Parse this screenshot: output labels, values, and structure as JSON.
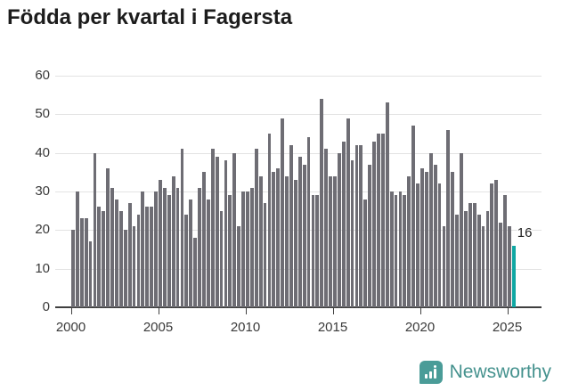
{
  "title": "Födda per kvartal i Fagersta",
  "chart_data": {
    "type": "bar",
    "title": "Födda per kvartal i Fagersta",
    "series_name": "Födda per kvartal",
    "x_start": "2000 Q1",
    "x_end": "2025 Q2",
    "frequency": "quarterly",
    "values": [
      20,
      30,
      23,
      23,
      17,
      40,
      26,
      25,
      36,
      31,
      28,
      25,
      20,
      27,
      21,
      24,
      30,
      26,
      26,
      30,
      33,
      31,
      29,
      34,
      31,
      41,
      24,
      28,
      18,
      31,
      35,
      28,
      41,
      39,
      25,
      38,
      29,
      40,
      21,
      30,
      30,
      31,
      41,
      34,
      27,
      45,
      35,
      36,
      49,
      34,
      42,
      33,
      39,
      37,
      44,
      29,
      29,
      54,
      41,
      34,
      34,
      40,
      43,
      49,
      38,
      42,
      42,
      28,
      37,
      43,
      45,
      45,
      53,
      30,
      29,
      30,
      29,
      34,
      47,
      32,
      36,
      35,
      40,
      37,
      32,
      21,
      46,
      35,
      24,
      40,
      25,
      27,
      27,
      24,
      21,
      25,
      32,
      33,
      22,
      29,
      21,
      16
    ],
    "highlight_last_bar": true,
    "last_value_label": "16",
    "ylim": [
      0,
      60
    ],
    "y_ticks": [
      "0",
      "10",
      "20",
      "30",
      "40",
      "50",
      "60"
    ],
    "x_ticks": [
      "2000",
      "2005",
      "2010",
      "2015",
      "2020",
      "2025"
    ],
    "grid": "horizontal",
    "legend": "none",
    "bar_color": "#6e6d74",
    "highlight_color": "#10a7a3"
  },
  "annotation": {
    "label": "16"
  },
  "footer": {
    "brand": "Newsworthy"
  },
  "colors": {
    "bar": "#6e6d74",
    "highlight": "#10a7a3",
    "grid": "#e3e3e3",
    "axis": "#3f3f3f",
    "text": "#3a3a3a",
    "title": "#1c1c1c",
    "logo": "#4a9c98"
  }
}
